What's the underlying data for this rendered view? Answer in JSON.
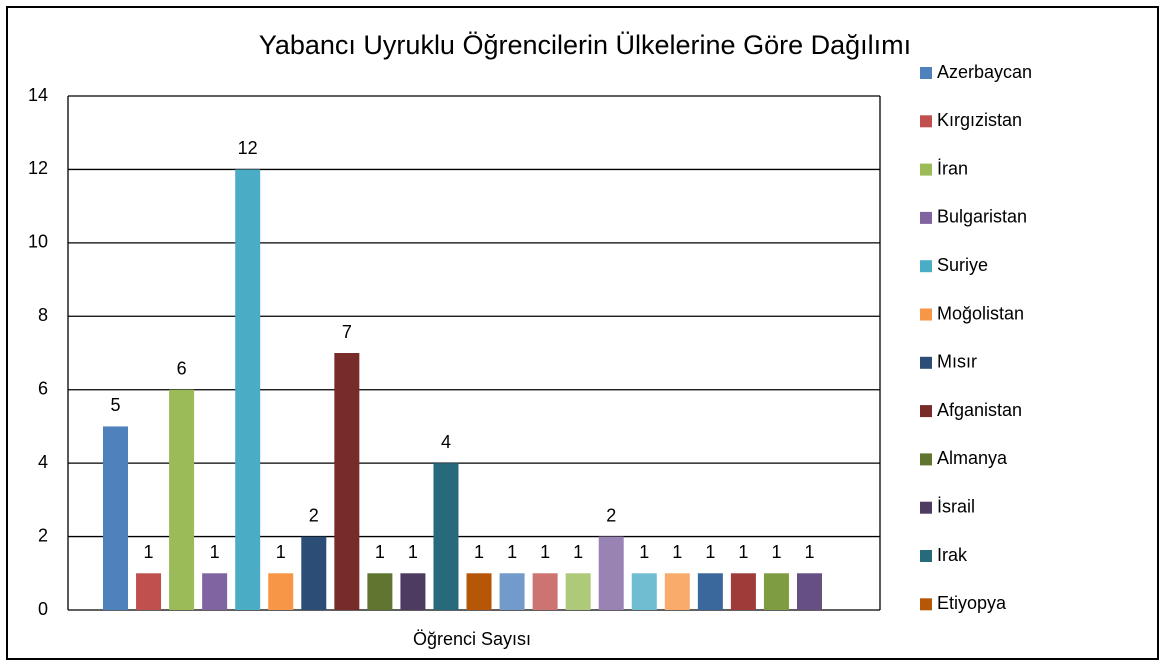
{
  "chart_data": {
    "type": "bar",
    "title": "Yabancı Uyruklu Öğrencilerin Ülkelerine Göre Dağılımı",
    "categories": [
      "Öğrenci Sayısı"
    ],
    "ylim": [
      0,
      14
    ],
    "yticks": [
      0,
      2,
      4,
      6,
      8,
      10,
      12,
      14
    ],
    "grid": true,
    "legend": "right",
    "data_labels": true,
    "series": [
      {
        "name": "Azerbaycan",
        "color": "#4F81BD",
        "values": [
          5
        ]
      },
      {
        "name": "Kırgızistan",
        "color": "#C0504D",
        "values": [
          1
        ]
      },
      {
        "name": "İran",
        "color": "#9BBB59",
        "values": [
          6
        ]
      },
      {
        "name": "Bulgaristan",
        "color": "#8064A2",
        "values": [
          1
        ]
      },
      {
        "name": "Suriye",
        "color": "#4BACC6",
        "values": [
          12
        ]
      },
      {
        "name": "Moğolistan",
        "color": "#F79646",
        "values": [
          1
        ]
      },
      {
        "name": "Mısır",
        "color": "#2C4D75",
        "values": [
          2
        ]
      },
      {
        "name": "Afganistan",
        "color": "#772C2A",
        "values": [
          7
        ]
      },
      {
        "name": "Almanya",
        "color": "#5F7530",
        "values": [
          1
        ]
      },
      {
        "name": "İsrail",
        "color": "#4D3B62",
        "values": [
          1
        ]
      },
      {
        "name": "Irak",
        "color": "#276A7C",
        "values": [
          4
        ]
      },
      {
        "name": "Etiyopya",
        "color": "#B65708",
        "values": [
          1
        ]
      },
      {
        "name": null,
        "color": "#729ACA",
        "values": [
          1
        ]
      },
      {
        "name": null,
        "color": "#CD7371",
        "values": [
          1
        ]
      },
      {
        "name": null,
        "color": "#AFC97A",
        "values": [
          1
        ]
      },
      {
        "name": null,
        "color": "#9983B5",
        "values": [
          2
        ]
      },
      {
        "name": null,
        "color": "#6FBDD1",
        "values": [
          1
        ]
      },
      {
        "name": null,
        "color": "#F9AB6B",
        "values": [
          1
        ]
      },
      {
        "name": null,
        "color": "#3A679C",
        "values": [
          1
        ]
      },
      {
        "name": null,
        "color": "#9F3B38",
        "values": [
          1
        ]
      },
      {
        "name": null,
        "color": "#7E9C40",
        "values": [
          1
        ]
      },
      {
        "name": null,
        "color": "#664F83",
        "values": [
          1
        ]
      }
    ]
  }
}
